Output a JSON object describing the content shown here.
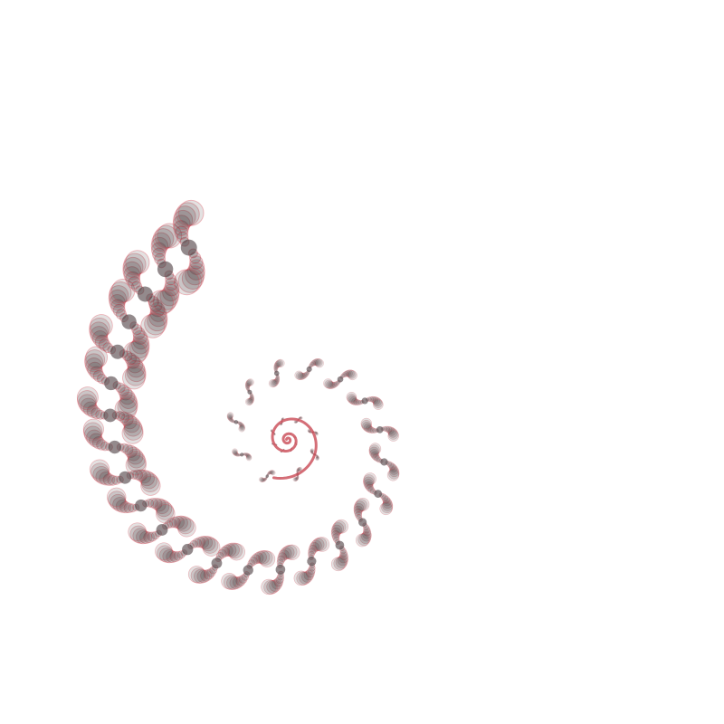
{
  "artwork": {
    "subject": "spiral-dot-pattern",
    "background_color": "#ffffff",
    "disc_fill_color": "#3a2a2e",
    "disc_stroke_color": "#d9424f",
    "core_color": "#c94a55"
  }
}
